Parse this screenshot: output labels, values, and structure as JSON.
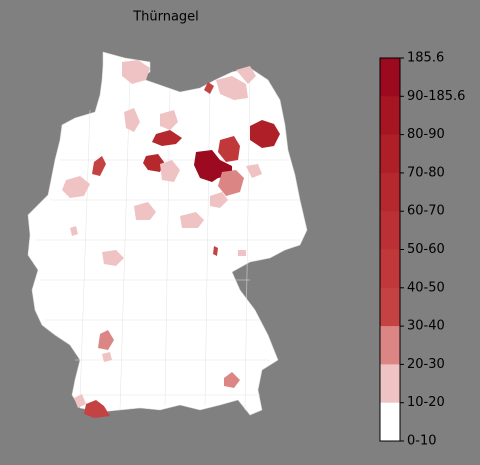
{
  "title": "Thürnagel",
  "legend": {
    "labels": [
      "185.6",
      "90-185.6",
      "80-90",
      "70-80",
      "60-70",
      "50-60",
      "40-50",
      "30-40",
      "20-30",
      "10-20",
      "0-10"
    ],
    "colors": [
      "#9b0a1e",
      "#a61622",
      "#ae1f28",
      "#b5282e",
      "#bb3034",
      "#c0383a",
      "#c54242",
      "#db8585",
      "#efc3c3",
      "#ffffff"
    ]
  }
}
